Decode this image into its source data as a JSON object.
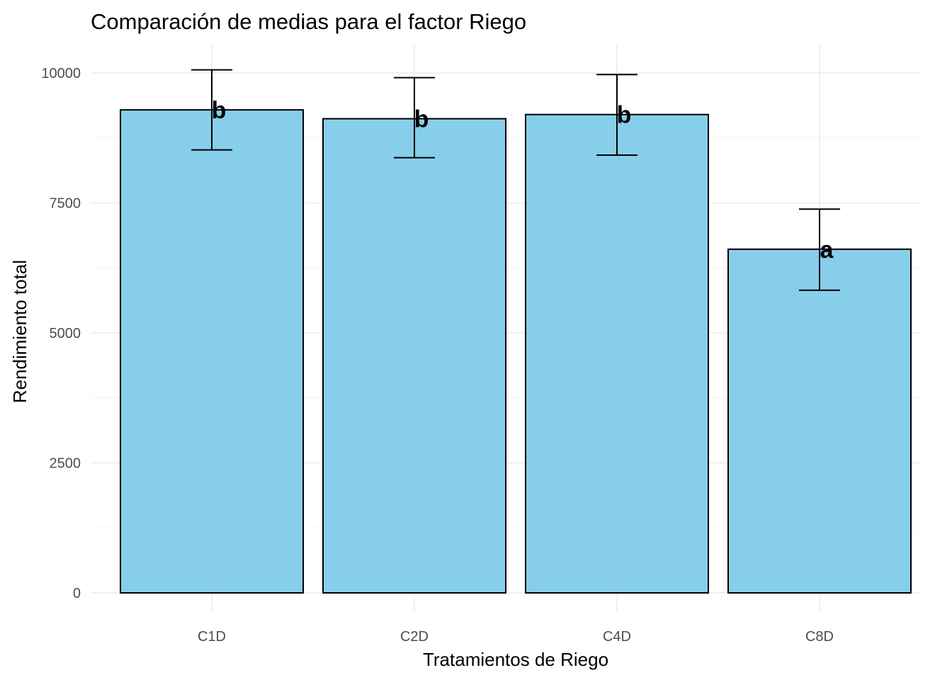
{
  "chart_data": {
    "type": "bar",
    "title": "Comparación de medias para el factor Riego",
    "xlabel": "Tratamientos de Riego",
    "ylabel": "Rendimiento total",
    "categories": [
      "C1D",
      "C2D",
      "C4D",
      "C8D"
    ],
    "values": [
      9290,
      9120,
      9200,
      6610
    ],
    "error_low": [
      8520,
      8370,
      8420,
      5820
    ],
    "error_high": [
      10060,
      9910,
      9970,
      7380
    ],
    "group_letters": [
      "b",
      "b",
      "b",
      "a"
    ],
    "ylim": [
      0,
      10500
    ],
    "y_ticks": [
      0,
      2500,
      5000,
      7500,
      10000
    ],
    "y_tick_labels": [
      "0",
      "2500",
      "5000",
      "7500",
      "10000"
    ],
    "grid": true,
    "bar_fill_color": "#87ceeb",
    "bar_outline_color": "#000000"
  }
}
